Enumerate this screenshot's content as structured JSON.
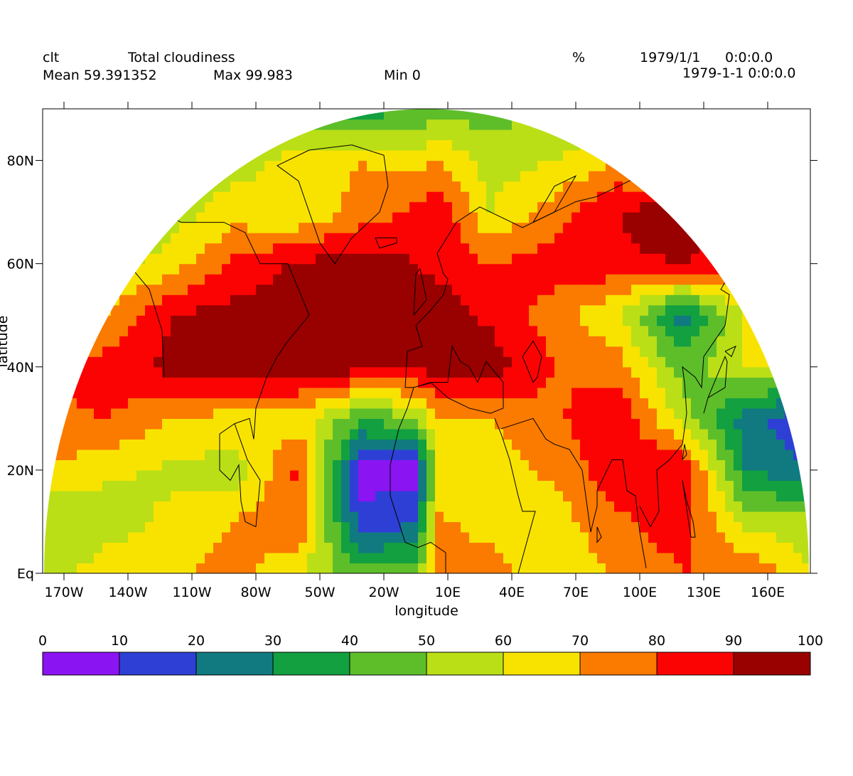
{
  "header": {
    "variable": "clt",
    "long_name": "Total cloudiness",
    "units": "%",
    "date": "1979/1/1",
    "time": "0:0:0.0",
    "mean_label": "Mean 59.391352",
    "max_label": "Max 99.983",
    "min_label": "Min 0",
    "datetime_label": "1979-1-1 0:0:0.0"
  },
  "axes": {
    "xlabel": "longitude",
    "ylabel": "latitude",
    "x_ticks": [
      "170W",
      "140W",
      "110W",
      "80W",
      "50W",
      "20W",
      "10E",
      "40E",
      "70E",
      "100E",
      "130E",
      "160E"
    ],
    "y_ticks": [
      "Eq",
      "20N",
      "40N",
      "60N",
      "80N"
    ]
  },
  "colorbar": {
    "levels": [
      "0",
      "10",
      "20",
      "30",
      "40",
      "50",
      "60",
      "70",
      "80",
      "90",
      "100"
    ],
    "colors": [
      "#8B14F2",
      "#2E3FD6",
      "#107A80",
      "#12A040",
      "#5EBE2A",
      "#BADF17",
      "#F8E300",
      "#FB7A00",
      "#FC0303",
      "#990000"
    ]
  },
  "chart_data": {
    "type": "heatmap",
    "title": "Total cloudiness",
    "variable": "clt",
    "units": "%",
    "projection": "hemispheric (northern hemisphere, equator to pole)",
    "lon_range": [
      -180,
      180
    ],
    "lat_range": [
      0,
      90
    ],
    "levels": [
      0,
      10,
      20,
      30,
      40,
      50,
      60,
      70,
      80,
      90,
      100
    ],
    "stats": {
      "mean": 59.391352,
      "max": 99.983,
      "min": 0
    },
    "grid_lon": [
      -180,
      -150,
      -120,
      -90,
      -60,
      -30,
      -5,
      5,
      30,
      60,
      90,
      120,
      150,
      180
    ],
    "grid_lat": [
      0,
      10,
      20,
      30,
      40,
      50,
      60,
      70,
      80,
      90
    ],
    "values": [
      [
        55,
        65,
        68,
        75,
        60,
        45,
        45,
        78,
        75,
        60,
        72,
        80,
        80,
        60
      ],
      [
        50,
        55,
        62,
        70,
        80,
        12,
        20,
        72,
        65,
        65,
        78,
        85,
        55,
        55
      ],
      [
        70,
        62,
        58,
        55,
        82,
        6,
        5,
        60,
        65,
        72,
        88,
        90,
        30,
        20
      ],
      [
        78,
        80,
        70,
        66,
        65,
        40,
        50,
        70,
        70,
        78,
        90,
        55,
        25,
        10
      ],
      [
        78,
        85,
        93,
        95,
        95,
        95,
        92,
        95,
        95,
        80,
        75,
        45,
        60,
        60
      ],
      [
        55,
        70,
        90,
        95,
        96,
        96,
        92,
        95,
        88,
        75,
        60,
        25,
        60,
        60
      ],
      [
        45,
        55,
        65,
        82,
        92,
        96,
        90,
        88,
        80,
        85,
        88,
        90,
        85,
        55
      ],
      [
        40,
        45,
        55,
        65,
        60,
        75,
        82,
        88,
        60,
        75,
        90,
        97,
        85,
        60
      ],
      [
        50,
        55,
        60,
        55,
        65,
        70,
        65,
        70,
        55,
        60,
        70,
        60,
        65,
        55
      ],
      [
        40,
        45,
        50,
        45,
        40,
        35,
        40,
        45,
        45,
        50,
        55,
        50,
        45,
        40
      ]
    ]
  }
}
